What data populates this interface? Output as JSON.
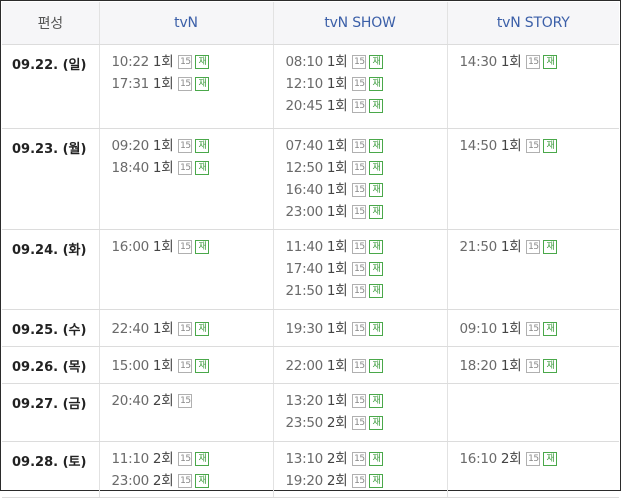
{
  "header": {
    "col0": "편성",
    "col1": "tvN",
    "col2": "tvN SHOW",
    "col3": "tvN STORY"
  },
  "badges": {
    "rating": "15",
    "rerun": "재"
  },
  "rows": [
    {
      "date": "09.22. (일)",
      "tvn": [
        {
          "time": "10:22",
          "ep": "1회",
          "re": true
        },
        {
          "time": "17:31",
          "ep": "1회",
          "re": true
        }
      ],
      "show": [
        {
          "time": "08:10",
          "ep": "1회",
          "re": true
        },
        {
          "time": "12:10",
          "ep": "1회",
          "re": true
        },
        {
          "time": "20:45",
          "ep": "1회",
          "re": true
        }
      ],
      "story": [
        {
          "time": "14:30",
          "ep": "1회",
          "re": true
        }
      ]
    },
    {
      "date": "09.23. (월)",
      "tvn": [
        {
          "time": "09:20",
          "ep": "1회",
          "re": true
        },
        {
          "time": "18:40",
          "ep": "1회",
          "re": true
        }
      ],
      "show": [
        {
          "time": "07:40",
          "ep": "1회",
          "re": true
        },
        {
          "time": "12:50",
          "ep": "1회",
          "re": true
        },
        {
          "time": "16:40",
          "ep": "1회",
          "re": true
        },
        {
          "time": "23:00",
          "ep": "1회",
          "re": true
        }
      ],
      "story": [
        {
          "time": "14:50",
          "ep": "1회",
          "re": true
        }
      ]
    },
    {
      "date": "09.24. (화)",
      "tvn": [
        {
          "time": "16:00",
          "ep": "1회",
          "re": true
        }
      ],
      "show": [
        {
          "time": "11:40",
          "ep": "1회",
          "re": true
        },
        {
          "time": "17:40",
          "ep": "1회",
          "re": true
        },
        {
          "time": "21:50",
          "ep": "1회",
          "re": true
        }
      ],
      "story": [
        {
          "time": "21:50",
          "ep": "1회",
          "re": true
        }
      ]
    },
    {
      "date": "09.25. (수)",
      "tvn": [
        {
          "time": "22:40",
          "ep": "1회",
          "re": true
        }
      ],
      "show": [
        {
          "time": "19:30",
          "ep": "1회",
          "re": true
        }
      ],
      "story": [
        {
          "time": "09:10",
          "ep": "1회",
          "re": true
        }
      ]
    },
    {
      "date": "09.26. (목)",
      "tvn": [
        {
          "time": "15:00",
          "ep": "1회",
          "re": true
        }
      ],
      "show": [
        {
          "time": "22:00",
          "ep": "1회",
          "re": true
        }
      ],
      "story": [
        {
          "time": "18:20",
          "ep": "1회",
          "re": true
        }
      ]
    },
    {
      "date": "09.27. (금)",
      "tvn": [
        {
          "time": "20:40",
          "ep": "2회",
          "re": false
        }
      ],
      "show": [
        {
          "time": "13:20",
          "ep": "1회",
          "re": true
        },
        {
          "time": "23:50",
          "ep": "2회",
          "re": true
        }
      ],
      "story": []
    },
    {
      "date": "09.28. (토)",
      "tvn": [
        {
          "time": "11:10",
          "ep": "2회",
          "re": true
        },
        {
          "time": "23:00",
          "ep": "2회",
          "re": true
        }
      ],
      "show": [
        {
          "time": "13:10",
          "ep": "2회",
          "re": true
        },
        {
          "time": "19:20",
          "ep": "2회",
          "re": true
        }
      ],
      "story": [
        {
          "time": "16:10",
          "ep": "2회",
          "re": true
        }
      ]
    }
  ]
}
